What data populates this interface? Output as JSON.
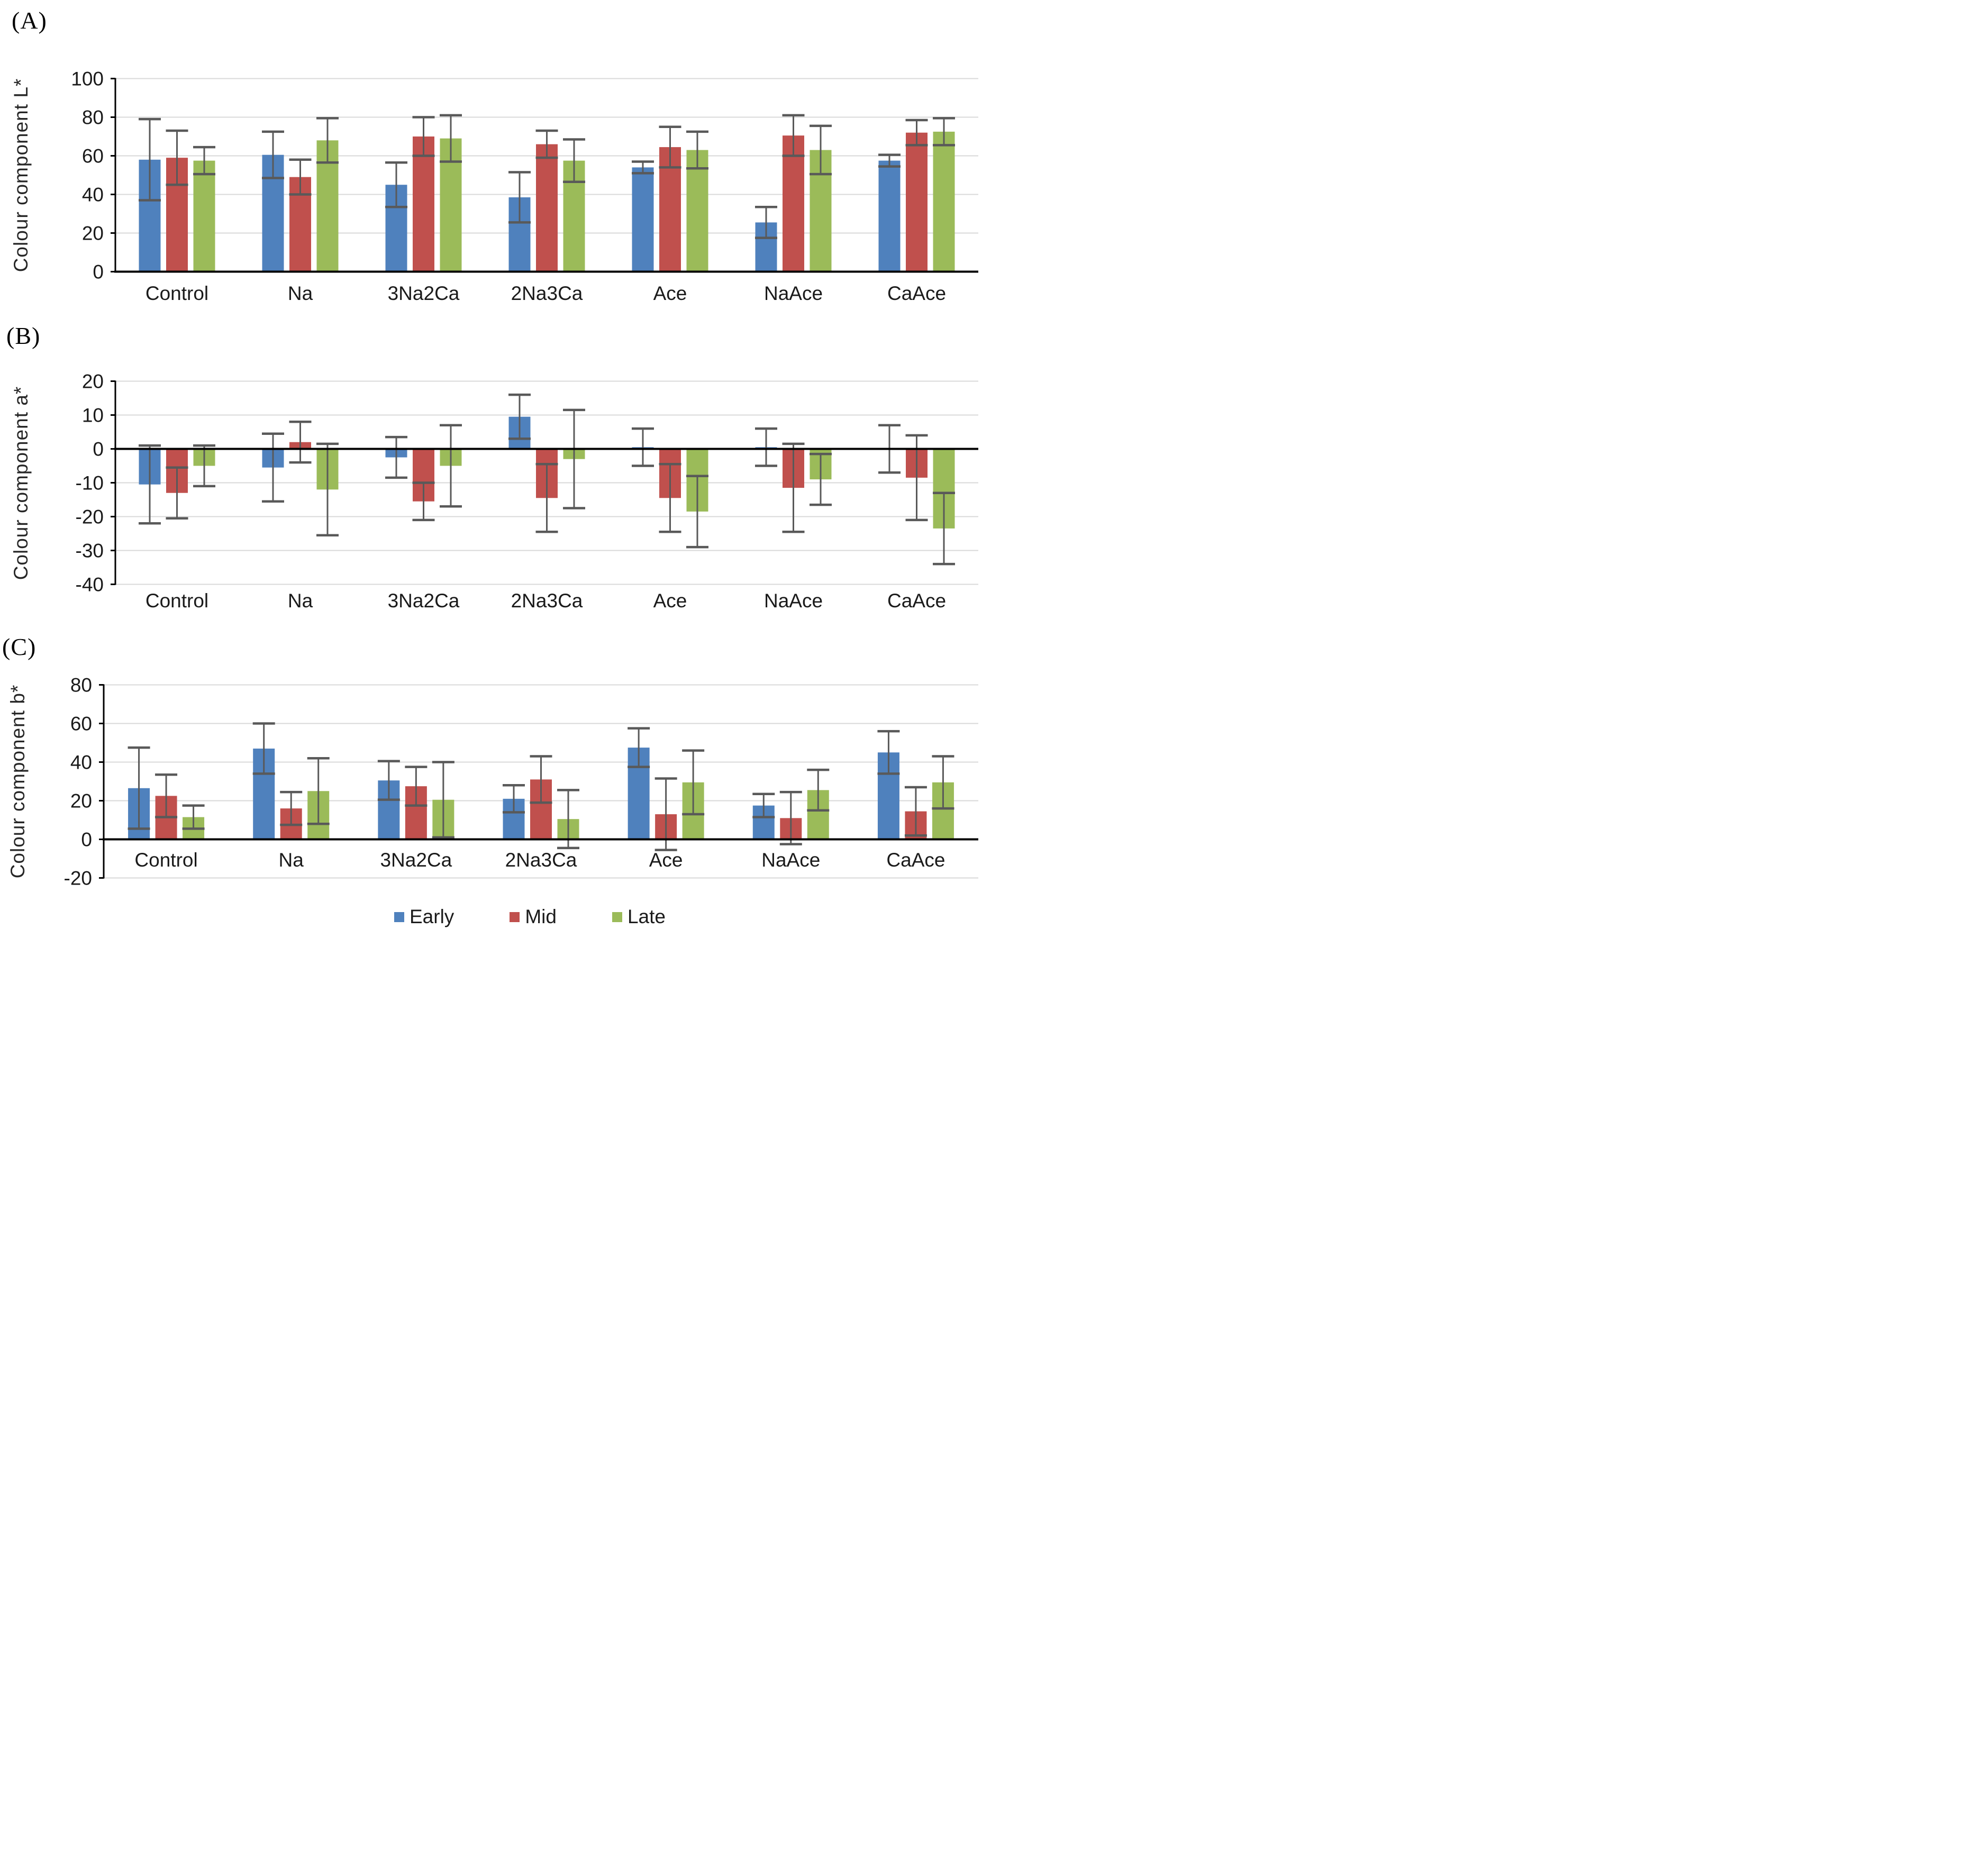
{
  "colors": {
    "early": "#4F81BD",
    "mid": "#C0504D",
    "late": "#9BBB59",
    "error_bar": "#595959",
    "gridline": "#D9D9D9",
    "axis": "#000000",
    "text": "#1a1a1a"
  },
  "legend": {
    "items": [
      {
        "label": "Early",
        "color": "#4F81BD"
      },
      {
        "label": "Mid",
        "color": "#C0504D"
      },
      {
        "label": "Late",
        "color": "#9BBB59"
      }
    ],
    "position": "bottom-center"
  },
  "chart_data": [
    {
      "type": "bar",
      "panel_label": "(A)",
      "title": "",
      "xlabel": "",
      "ylabel": "Colour component L*",
      "ylim": [
        0,
        100
      ],
      "ytick_step": 20,
      "grid": true,
      "categories": [
        "Control",
        "Na",
        "3Na2Ca",
        "2Na3Ca",
        "Ace",
        "NaAce",
        "CaAce"
      ],
      "series": [
        {
          "name": "Early",
          "values": [
            58,
            60.5,
            45,
            38.5,
            54,
            25.5,
            57.5
          ],
          "errors": [
            21,
            12,
            11.5,
            13,
            3,
            8,
            3
          ]
        },
        {
          "name": "Mid",
          "values": [
            59,
            49,
            70,
            66,
            64.5,
            70.5,
            72
          ],
          "errors": [
            14,
            9,
            10,
            7,
            10.5,
            10.5,
            6.5
          ]
        },
        {
          "name": "Late",
          "values": [
            57.5,
            68,
            69,
            57.5,
            63,
            63,
            72.5
          ],
          "errors": [
            7,
            11.5,
            12,
            11,
            9.5,
            12.5,
            7
          ]
        }
      ]
    },
    {
      "type": "bar",
      "panel_label": "(B)",
      "title": "",
      "xlabel": "",
      "ylabel": "Colour component a*",
      "ylim": [
        -40,
        20
      ],
      "ytick_step": 10,
      "grid": true,
      "categories": [
        "Control",
        "Na",
        "3Na2Ca",
        "2Na3Ca",
        "Ace",
        "NaAce",
        "CaAce"
      ],
      "series": [
        {
          "name": "Early",
          "values": [
            -10.5,
            -5.5,
            -2.5,
            9.5,
            0.5,
            0.5,
            0
          ],
          "errors": [
            11.5,
            10,
            6,
            6.5,
            5.5,
            5.5,
            7
          ]
        },
        {
          "name": "Mid",
          "values": [
            -13,
            2,
            -15.5,
            -14.5,
            -14.5,
            -11.5,
            -8.5
          ],
          "errors": [
            7.5,
            6,
            5.5,
            10,
            10,
            13,
            12.5
          ]
        },
        {
          "name": "Late",
          "values": [
            -5,
            -12,
            -5,
            -3,
            -18.5,
            -9,
            -23.5
          ],
          "errors": [
            6,
            13.5,
            12,
            14.5,
            10.5,
            7.5,
            10.5
          ]
        }
      ]
    },
    {
      "type": "bar",
      "panel_label": "(C)",
      "title": "",
      "xlabel": "",
      "ylabel": "Colour component b*",
      "ylim": [
        -20,
        80
      ],
      "ytick_step": 20,
      "grid": true,
      "categories": [
        "Control",
        "Na",
        "3Na2Ca",
        "2Na3Ca",
        "Ace",
        "NaAce",
        "CaAce"
      ],
      "series": [
        {
          "name": "Early",
          "values": [
            26.5,
            47,
            30.5,
            21,
            47.5,
            17.5,
            45
          ],
          "errors": [
            21,
            13,
            10,
            7,
            10,
            6,
            11
          ]
        },
        {
          "name": "Mid",
          "values": [
            22.5,
            16,
            27.5,
            31,
            13,
            11,
            14.5
          ],
          "errors": [
            11,
            8.5,
            10,
            12,
            18.5,
            13.5,
            12.5
          ]
        },
        {
          "name": "Late",
          "values": [
            11.5,
            25,
            20.5,
            10.5,
            29.5,
            25.5,
            29.5
          ],
          "errors": [
            6,
            17,
            19.5,
            15,
            16.5,
            10.5,
            13.5
          ]
        }
      ]
    }
  ]
}
